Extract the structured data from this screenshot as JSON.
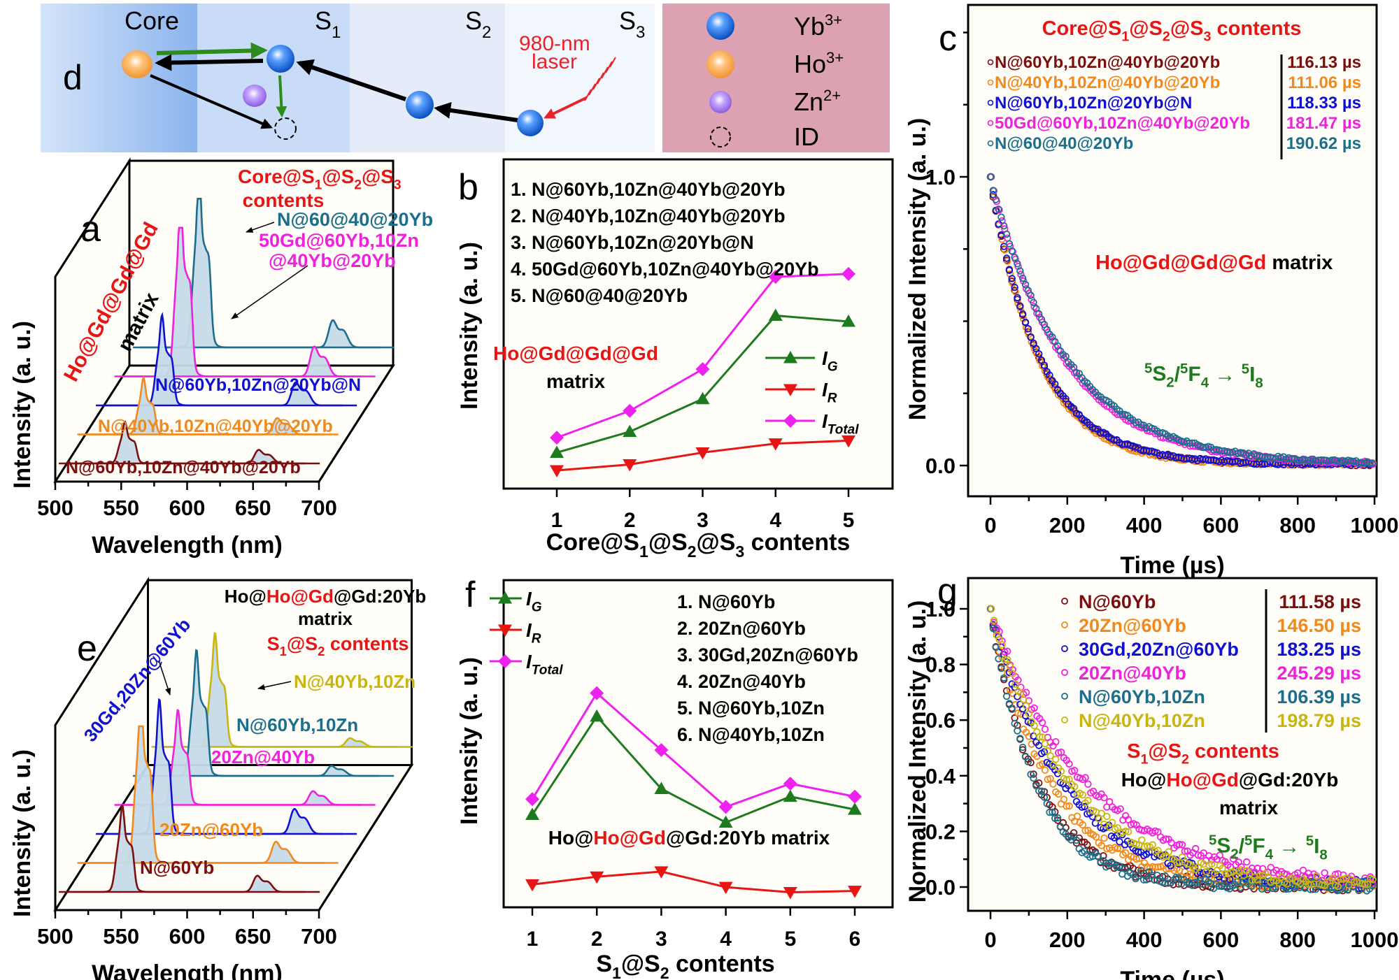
{
  "figure": {
    "panel_labels": {
      "a": "a",
      "b": "b",
      "c": "c",
      "d": "d",
      "e": "e",
      "f": "f",
      "g": "g"
    }
  },
  "diagram_d": {
    "regions": [
      "Core",
      "S1",
      "S2",
      "S3"
    ],
    "region_labels": [
      {
        "main": "Core",
        "sub": ""
      },
      {
        "main": "S",
        "sub": "1"
      },
      {
        "main": "S",
        "sub": "2"
      },
      {
        "main": "S",
        "sub": "3"
      }
    ],
    "laser_label_line1": "980-nm",
    "laser_label_line2": "laser",
    "colors": {
      "core": "#8fb6ef",
      "s1": "#c9dcf7",
      "s2": "#e4ecf9",
      "s3": "#f2f6fd",
      "legend_bg": "#dda2b1",
      "laser": "#e8242b",
      "green_arrow": "#2e8b1e"
    },
    "legend": [
      {
        "icon": "yb-ion-sphere-icon",
        "label": "Yb",
        "sup": "3+",
        "color": "#1f6fe0"
      },
      {
        "icon": "ho-ion-sphere-icon",
        "label": "Ho",
        "sup": "3+",
        "color": "#f5a040"
      },
      {
        "icon": "zn-ion-sphere-icon",
        "label": "Zn",
        "sup": "2+",
        "color": "#a070e0"
      },
      {
        "icon": "defect-dashed-circle-icon",
        "label": "ID",
        "sup": "",
        "color": "#000000"
      }
    ]
  },
  "chart_data": [
    {
      "id": "a",
      "type": "line",
      "subtype": "stacked-3d-spectra",
      "xlabel": "Wavelength (nm)",
      "ylabel": "Intensity (a. u.)",
      "xlim": [
        500,
        700
      ],
      "xticks": [
        "500",
        "550",
        "600",
        "650",
        "700"
      ],
      "side_label_red": "Ho@Gd@Gd@Gd",
      "side_label_black": "matrix",
      "title_line1": "Core@S",
      "title_subs": [
        "1",
        "2",
        "3"
      ],
      "title_text": "Core@S1@S2@S3",
      "title_line2": "contents",
      "series": [
        {
          "name": "N@60Yb,10Zn@40Yb@20Yb",
          "color": "#7b0f0f",
          "green_peak": 553,
          "green_height": 0.22,
          "red_peak": 655,
          "red_height": 0.1
        },
        {
          "name": "N@40Yb,10Zn@40Yb@20Yb",
          "color": "#f08a1c",
          "green_peak": 575,
          "green_height": 0.3,
          "red_peak": 677,
          "red_height": 0.12
        },
        {
          "name": "N@60Yb,10Zn@20Yb@N",
          "color": "#1010d0",
          "green_peak": 598,
          "green_height": 0.48,
          "red_peak": 697,
          "red_height": 0.17
        },
        {
          "name": "50Gd@60Yb,10Zn@40Yb@20Yb",
          "color": "#ee22dd",
          "green_peak": 618,
          "green_height": 0.95,
          "red_peak": 718,
          "red_height": 0.22
        },
        {
          "name": "N@60@40@20Yb",
          "color": "#1b6f8c",
          "green_peak": 638,
          "green_height": 0.93,
          "red_peak": 738,
          "red_height": 0.2
        }
      ],
      "labels": {
        "s5_label": "N@60@40@20Yb",
        "s4_label_line1": "50Gd@60Yb,10Zn",
        "s4_label_line2": "@40Yb@20Yb"
      }
    },
    {
      "id": "b",
      "type": "line",
      "categories": [
        "1",
        "2",
        "3",
        "4",
        "5"
      ],
      "xlabel": "Core@S1@S2@S3 contents",
      "ylabel": "Intensity (a. u.)",
      "ylim": [
        0,
        1
      ],
      "items": [
        "1. N@60Yb,10Zn@40Yb@20Yb",
        "2. N@40Yb,10Zn@40Yb@20Yb",
        "3. N@60Yb,10Zn@20Yb@N",
        "4. 50Gd@60Yb,10Zn@40Yb@20Yb",
        "5. N@60@40@20Yb"
      ],
      "annotation_red": "Ho@Gd@Gd@Gd",
      "annotation_black": "matrix",
      "series": [
        {
          "name": "I_G",
          "label_main": "I",
          "label_sub": "G",
          "color": "#1e7a1e",
          "marker": "triangle-up",
          "values": [
            0.06,
            0.13,
            0.24,
            0.52,
            0.5
          ]
        },
        {
          "name": "I_R",
          "label_main": "I",
          "label_sub": "R",
          "color": "#e81515",
          "marker": "triangle-down",
          "values": [
            0.0,
            0.02,
            0.06,
            0.09,
            0.1
          ]
        },
        {
          "name": "I_Total",
          "label_main": "I",
          "label_sub": "Total",
          "color": "#ee22ee",
          "marker": "diamond",
          "values": [
            0.11,
            0.2,
            0.34,
            0.65,
            0.66
          ]
        }
      ]
    },
    {
      "id": "c",
      "type": "scatter",
      "xlabel": "Time (µs)",
      "ylabel": "Normalized Intensity (a. u.)",
      "xlim": [
        0,
        1000
      ],
      "ylim": [
        -0.05,
        1.05
      ],
      "xticks": [
        "0",
        "200",
        "400",
        "600",
        "800",
        "1000"
      ],
      "yticks": [
        "0.0",
        "1.0"
      ],
      "legend_title": "Core@S1@S2@S3 contents",
      "annotation_red": "Ho@Gd@Gd@Gd",
      "annotation_black": "matrix",
      "transition": "5S2/5F4 → 5I8",
      "series": [
        {
          "name": "N@60Yb,10Zn@40Yb@20Yb",
          "lifetime": "116.13 µs",
          "tau": 116.13,
          "color": "#7b0f0f"
        },
        {
          "name": "N@40Yb,10Zn@40Yb@20Yb",
          "lifetime": "111.06 µs",
          "tau": 111.06,
          "color": "#f08a1c"
        },
        {
          "name": "N@60Yb,10Zn@20Yb@N",
          "lifetime": "118.33 µs",
          "tau": 118.33,
          "color": "#1010d0"
        },
        {
          "name": "50Gd@60Yb,10Zn@40Yb@20Yb",
          "lifetime": "181.47 µs",
          "tau": 181.47,
          "color": "#ee22dd"
        },
        {
          "name": "N@60@40@20Yb",
          "lifetime": "190.62 µs",
          "tau": 190.62,
          "color": "#1b6f8c"
        }
      ]
    },
    {
      "id": "e",
      "type": "line",
      "subtype": "stacked-3d-spectra",
      "xlabel": "Wavelength (nm)",
      "ylabel": "Intensity (a. u.)",
      "xlim": [
        500,
        700
      ],
      "xticks": [
        "500",
        "550",
        "600",
        "650",
        "700"
      ],
      "title_parts": [
        {
          "text": "Ho@",
          "color": "#000000"
        },
        {
          "text": "Ho@Gd",
          "color": "#e81515"
        },
        {
          "text": "@Gd:20Yb",
          "color": "#000000"
        }
      ],
      "title_line2": "matrix",
      "subtitle": "S1@S2 contents",
      "side_label": "30Gd,20Zn@60Yb",
      "series": [
        {
          "name": "N@60Yb",
          "color": "#7b0f0f",
          "green_peak": 551,
          "green_height": 0.5,
          "red_peak": 654,
          "red_height": 0.13
        },
        {
          "name": "20Zn@60Yb",
          "color": "#f08a1c",
          "green_peak": 571,
          "green_height": 1.0,
          "red_peak": 673,
          "red_height": 0.17
        },
        {
          "name": "30Gd,20Zn@60Yb",
          "color": "#1010d0",
          "green_peak": 590,
          "green_height": 0.78,
          "red_peak": 688,
          "red_height": 0.2
        },
        {
          "name": "20Zn@40Yb",
          "color": "#ee22dd",
          "green_peak": 609,
          "green_height": 0.55,
          "red_peak": 706,
          "red_height": 0.11
        },
        {
          "name": "N@60Yb,10Zn",
          "color": "#1b6f8c",
          "green_peak": 627,
          "green_height": 0.73,
          "red_peak": 724,
          "red_height": 0.08
        },
        {
          "name": "N@40Yb,10Zn",
          "color": "#c9b511",
          "green_peak": 645,
          "green_height": 0.66,
          "red_peak": 742,
          "red_height": 0.07
        }
      ]
    },
    {
      "id": "f",
      "type": "line",
      "categories": [
        "1",
        "2",
        "3",
        "4",
        "5",
        "6"
      ],
      "xlabel": "S1@S2 contents",
      "ylabel": "Intensity (a. u.)",
      "ylim": [
        0,
        1
      ],
      "items": [
        "1. N@60Yb",
        "2. 20Zn@60Yb",
        "3. 30Gd,20Zn@60Yb",
        "4. 20Zn@40Yb",
        "5. N@60Yb,10Zn",
        "6. N@40Yb,10Zn"
      ],
      "annotation_parts": [
        {
          "text": "Ho@",
          "color": "#000000"
        },
        {
          "text": "Ho@Gd",
          "color": "#e81515"
        },
        {
          "text": "@Gd:20Yb matrix",
          "color": "#000000"
        }
      ],
      "series": [
        {
          "name": "I_G",
          "label_main": "I",
          "label_sub": "G",
          "color": "#1e7a1e",
          "marker": "triangle-up",
          "values": [
            0.35,
            0.73,
            0.45,
            0.32,
            0.42,
            0.37
          ]
        },
        {
          "name": "I_R",
          "label_main": "I",
          "label_sub": "R",
          "color": "#e81515",
          "marker": "triangle-down",
          "values": [
            0.08,
            0.11,
            0.13,
            0.07,
            0.05,
            0.055
          ]
        },
        {
          "name": "I_Total",
          "label_main": "I",
          "label_sub": "Total",
          "color": "#ee22ee",
          "marker": "diamond",
          "values": [
            0.41,
            0.82,
            0.6,
            0.38,
            0.47,
            0.42
          ]
        }
      ]
    },
    {
      "id": "g",
      "type": "scatter",
      "xlabel": "Time (µs)",
      "ylabel": "Normalized Intensity (a. u.)",
      "xlim": [
        0,
        1000
      ],
      "ylim": [
        -0.05,
        1.1
      ],
      "xticks": [
        "0",
        "200",
        "400",
        "600",
        "800",
        "1000"
      ],
      "yticks": [
        "0.0",
        "0.2",
        "0.4",
        "0.6",
        "0.8",
        "1.0"
      ],
      "subtitle": "S1@S2 contents",
      "annotation_parts": [
        {
          "text": "Ho@",
          "color": "#000000"
        },
        {
          "text": "Ho@Gd",
          "color": "#e81515"
        },
        {
          "text": "@Gd:20Yb",
          "color": "#000000"
        }
      ],
      "annotation_line2": "matrix",
      "transition": "5S2/5F4 → 5I8",
      "series": [
        {
          "name": "N@60Yb",
          "lifetime": "111.58 µs",
          "tau": 111.58,
          "color": "#7b0f0f"
        },
        {
          "name": "20Zn@60Yb",
          "lifetime": "146.50 µs",
          "tau": 146.5,
          "color": "#f08a1c"
        },
        {
          "name": "30Gd,20Zn@60Yb",
          "lifetime": "183.25 µs",
          "tau": 183.25,
          "color": "#1010d0"
        },
        {
          "name": "20Zn@40Yb",
          "lifetime": "245.29 µs",
          "tau": 245.29,
          "color": "#ee22dd"
        },
        {
          "name": "N@60Yb,10Zn",
          "lifetime": "106.39 µs",
          "tau": 106.39,
          "color": "#1b6f8c"
        },
        {
          "name": "N@40Yb,10Zn",
          "lifetime": "198.79 µs",
          "tau": 198.79,
          "color": "#c9b511"
        }
      ]
    }
  ]
}
